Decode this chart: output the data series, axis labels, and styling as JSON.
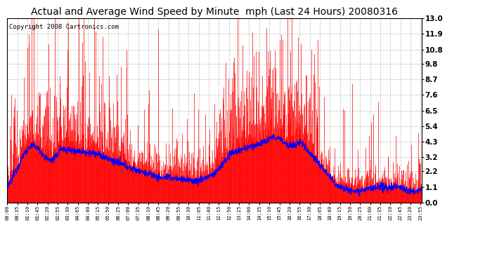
{
  "title": "Actual and Average Wind Speed by Minute  mph (Last 24 Hours) 20080316",
  "copyright": "Copyright 2008 Cartronics.com",
  "yticks": [
    0.0,
    1.1,
    2.2,
    3.2,
    4.3,
    5.4,
    6.5,
    7.6,
    8.7,
    9.8,
    10.8,
    11.9,
    13.0
  ],
  "ylim": [
    0.0,
    13.0
  ],
  "bar_color": "#FF0000",
  "line_color": "#0000FF",
  "background_color": "#FFFFFF",
  "grid_color": "#AAAAAA",
  "title_fontsize": 10,
  "copyright_fontsize": 6.5,
  "xtick_fontsize": 5.0,
  "ytick_fontsize": 7.5
}
